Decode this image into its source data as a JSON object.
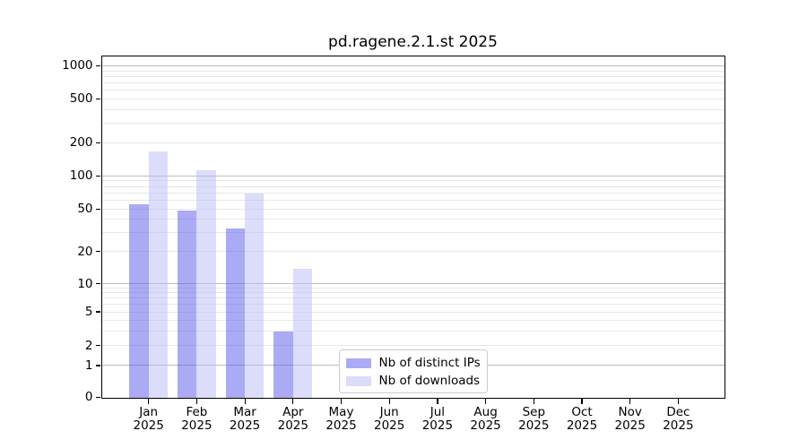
{
  "chart_data": {
    "type": "bar",
    "title": "pd.ragene.2.1.st 2025",
    "x_months": [
      "Jan",
      "Feb",
      "Mar",
      "Apr",
      "May",
      "Jun",
      "Jul",
      "Aug",
      "Sep",
      "Oct",
      "Nov",
      "Dec"
    ],
    "x_year": "2025",
    "series": [
      {
        "name": "Nb of distinct IPs",
        "display_color": "#aaaaf5",
        "fill_rgba": "rgba(85,85,235,0.5)",
        "values": [
          56,
          49,
          33,
          3,
          0,
          0,
          0,
          0,
          0,
          0,
          0,
          0
        ]
      },
      {
        "name": "Nb of downloads",
        "display_color": "#dcdcfb",
        "fill_rgba": "rgba(185,185,247,0.5)",
        "values": [
          170,
          113,
          70,
          14,
          0,
          0,
          0,
          0,
          0,
          0,
          0,
          0
        ]
      }
    ],
    "yscale": "symlog",
    "ylim": [
      0,
      1200
    ],
    "yticks": [
      0,
      1,
      2,
      5,
      10,
      20,
      50,
      100,
      200,
      500,
      1000
    ],
    "y_major_gridlines": [
      1,
      10,
      100,
      1000
    ],
    "y_minor_gridlines": [
      2,
      3,
      4,
      5,
      6,
      7,
      8,
      9,
      20,
      30,
      40,
      50,
      60,
      70,
      80,
      90,
      200,
      300,
      400,
      500,
      600,
      700,
      800,
      900
    ],
    "scale_anchors": [
      [
        0,
        0
      ],
      [
        1,
        0.0931
      ],
      [
        2,
        0.1515
      ],
      [
        5,
        0.2503
      ],
      [
        10,
        0.3324
      ],
      [
        20,
        0.4273
      ],
      [
        50,
        0.5518
      ],
      [
        100,
        0.6488
      ],
      [
        200,
        0.7457
      ],
      [
        500,
        0.8742
      ],
      [
        1000,
        0.9712
      ]
    ],
    "grid": true,
    "legend": {
      "location": "lower center",
      "entries": [
        "Nb of distinct IPs",
        "Nb of downloads"
      ]
    },
    "colors": {
      "grid_major": "#bdbdbd",
      "grid_minor": "#e8e8e8",
      "spine": "#000000",
      "text": "#000000",
      "legend_border": "#cccccc"
    }
  }
}
